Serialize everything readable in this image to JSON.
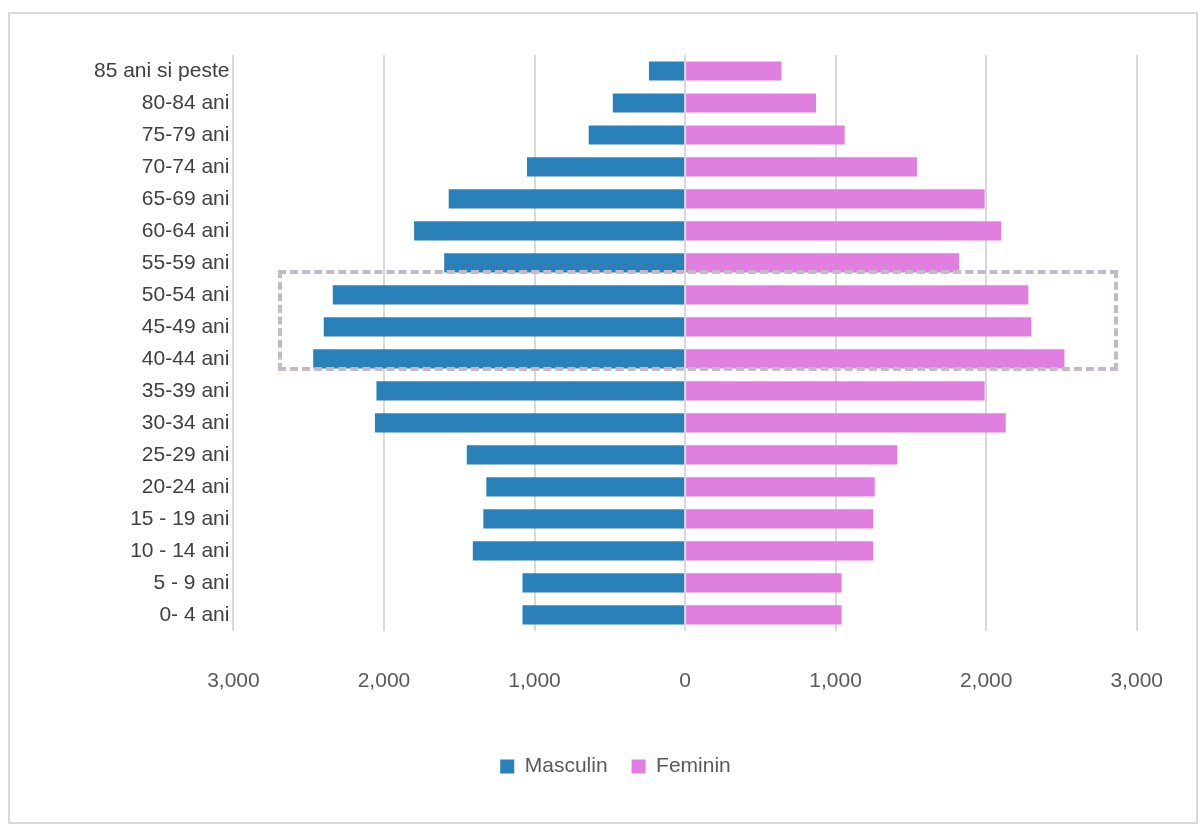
{
  "chart_data": {
    "type": "bar",
    "orientation": "horizontal",
    "stacked": true,
    "categories": [
      "85 ani si peste",
      "80-84 ani",
      "75-79 ani",
      "70-74 ani",
      "65-69 ani",
      "60-64 ani",
      "55-59 ani",
      "50-54 ani",
      "45-49 ani",
      "40-44 ani",
      "35-39 ani",
      "30-34 ani",
      "25-29 ani",
      "20-24 ani",
      "15 - 19 ani",
      "10 - 14 ani",
      "5 - 9 ani",
      "0- 4 ani"
    ],
    "series": [
      {
        "name": "Masculin",
        "color": "#2a80b9",
        "values": [
          -240,
          -480,
          -640,
          -1050,
          -1570,
          -1800,
          -1600,
          -2340,
          -2400,
          -2470,
          -2050,
          -2060,
          -1450,
          -1320,
          -1340,
          -1410,
          -1080,
          -1080
        ]
      },
      {
        "name": "Feminin",
        "color": "#e07fe0",
        "values": [
          640,
          870,
          1060,
          1540,
          1990,
          2100,
          1820,
          2280,
          2300,
          2520,
          1990,
          2130,
          1410,
          1260,
          1250,
          1250,
          1040,
          1040
        ]
      }
    ],
    "xlim": [
      -3000,
      3000
    ],
    "xticks": [
      {
        "value": -3000,
        "label": "3,000"
      },
      {
        "value": -2000,
        "label": "2,000"
      },
      {
        "value": -1000,
        "label": "1,000"
      },
      0,
      {
        "value": 1000,
        "label": "1,000"
      },
      {
        "value": 2000,
        "label": "2,000"
      },
      {
        "value": 3000,
        "label": "3,000"
      }
    ],
    "grid": "x",
    "legend": "bottom"
  }
}
